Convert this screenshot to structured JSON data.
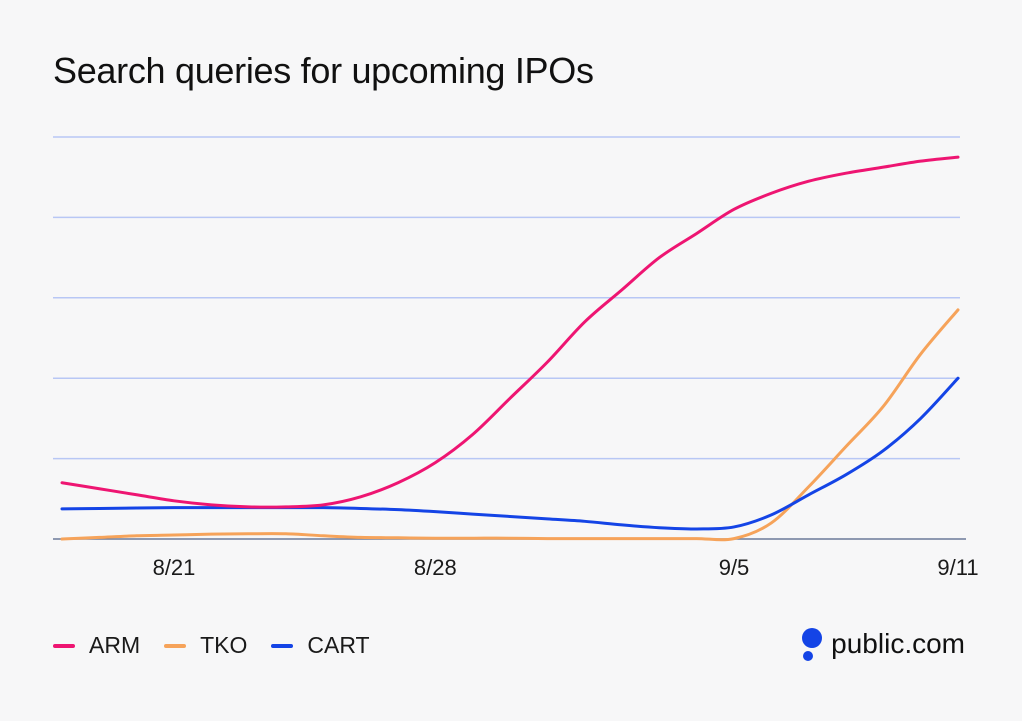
{
  "chart_data": {
    "type": "line",
    "title": "Search queries for upcoming IPOs",
    "xlabel": "",
    "ylabel": "",
    "x_ticks": [
      "8/21",
      "8/28",
      "9/5",
      "9/11"
    ],
    "x_tick_index": [
      3,
      10,
      18,
      24
    ],
    "x": [
      1,
      2,
      3,
      4,
      5,
      6,
      7,
      8,
      9,
      10,
      11,
      12,
      13,
      14,
      15,
      16,
      17,
      18,
      19,
      20,
      21,
      22,
      23,
      24,
      25
    ],
    "ylim": [
      0,
      100
    ],
    "grid_values": [
      20,
      40,
      60,
      80,
      100
    ],
    "grid": true,
    "series": [
      {
        "name": "ARM",
        "color": "#ee1572",
        "values": [
          14,
          12.5,
          11,
          9.5,
          8.5,
          8,
          8,
          8.5,
          10.5,
          14,
          19,
          26,
          35,
          44,
          54,
          62,
          70,
          76,
          82,
          86,
          89,
          91,
          92.5,
          94,
          95
        ]
      },
      {
        "name": "TKO",
        "color": "#f6a35a",
        "values": [
          0,
          0.4,
          0.8,
          1,
          1.2,
          1.3,
          1.3,
          0.8,
          0.4,
          0.3,
          0.2,
          0.2,
          0.2,
          0.1,
          0.1,
          0.1,
          0.1,
          0.1,
          0.1,
          4,
          13,
          23,
          33,
          46,
          57
        ]
      },
      {
        "name": "CART",
        "color": "#1444e6",
        "values": [
          7.5,
          7.6,
          7.7,
          7.8,
          7.8,
          7.8,
          7.8,
          7.8,
          7.6,
          7.3,
          6.8,
          6.2,
          5.6,
          5,
          4.4,
          3.5,
          2.8,
          2.5,
          3,
          6,
          11,
          16,
          22,
          30,
          40
        ]
      }
    ]
  },
  "legend": [
    {
      "label": "ARM",
      "color": "#ee1572"
    },
    {
      "label": "TKO",
      "color": "#f6a35a"
    },
    {
      "label": "CART",
      "color": "#1444e6"
    }
  ],
  "brand": {
    "name": "public.com",
    "logo_color": "#1444e6"
  },
  "colors": {
    "grid": "#b8c7f5",
    "baseline": "#6b7a99",
    "background": "#f7f7f8"
  }
}
